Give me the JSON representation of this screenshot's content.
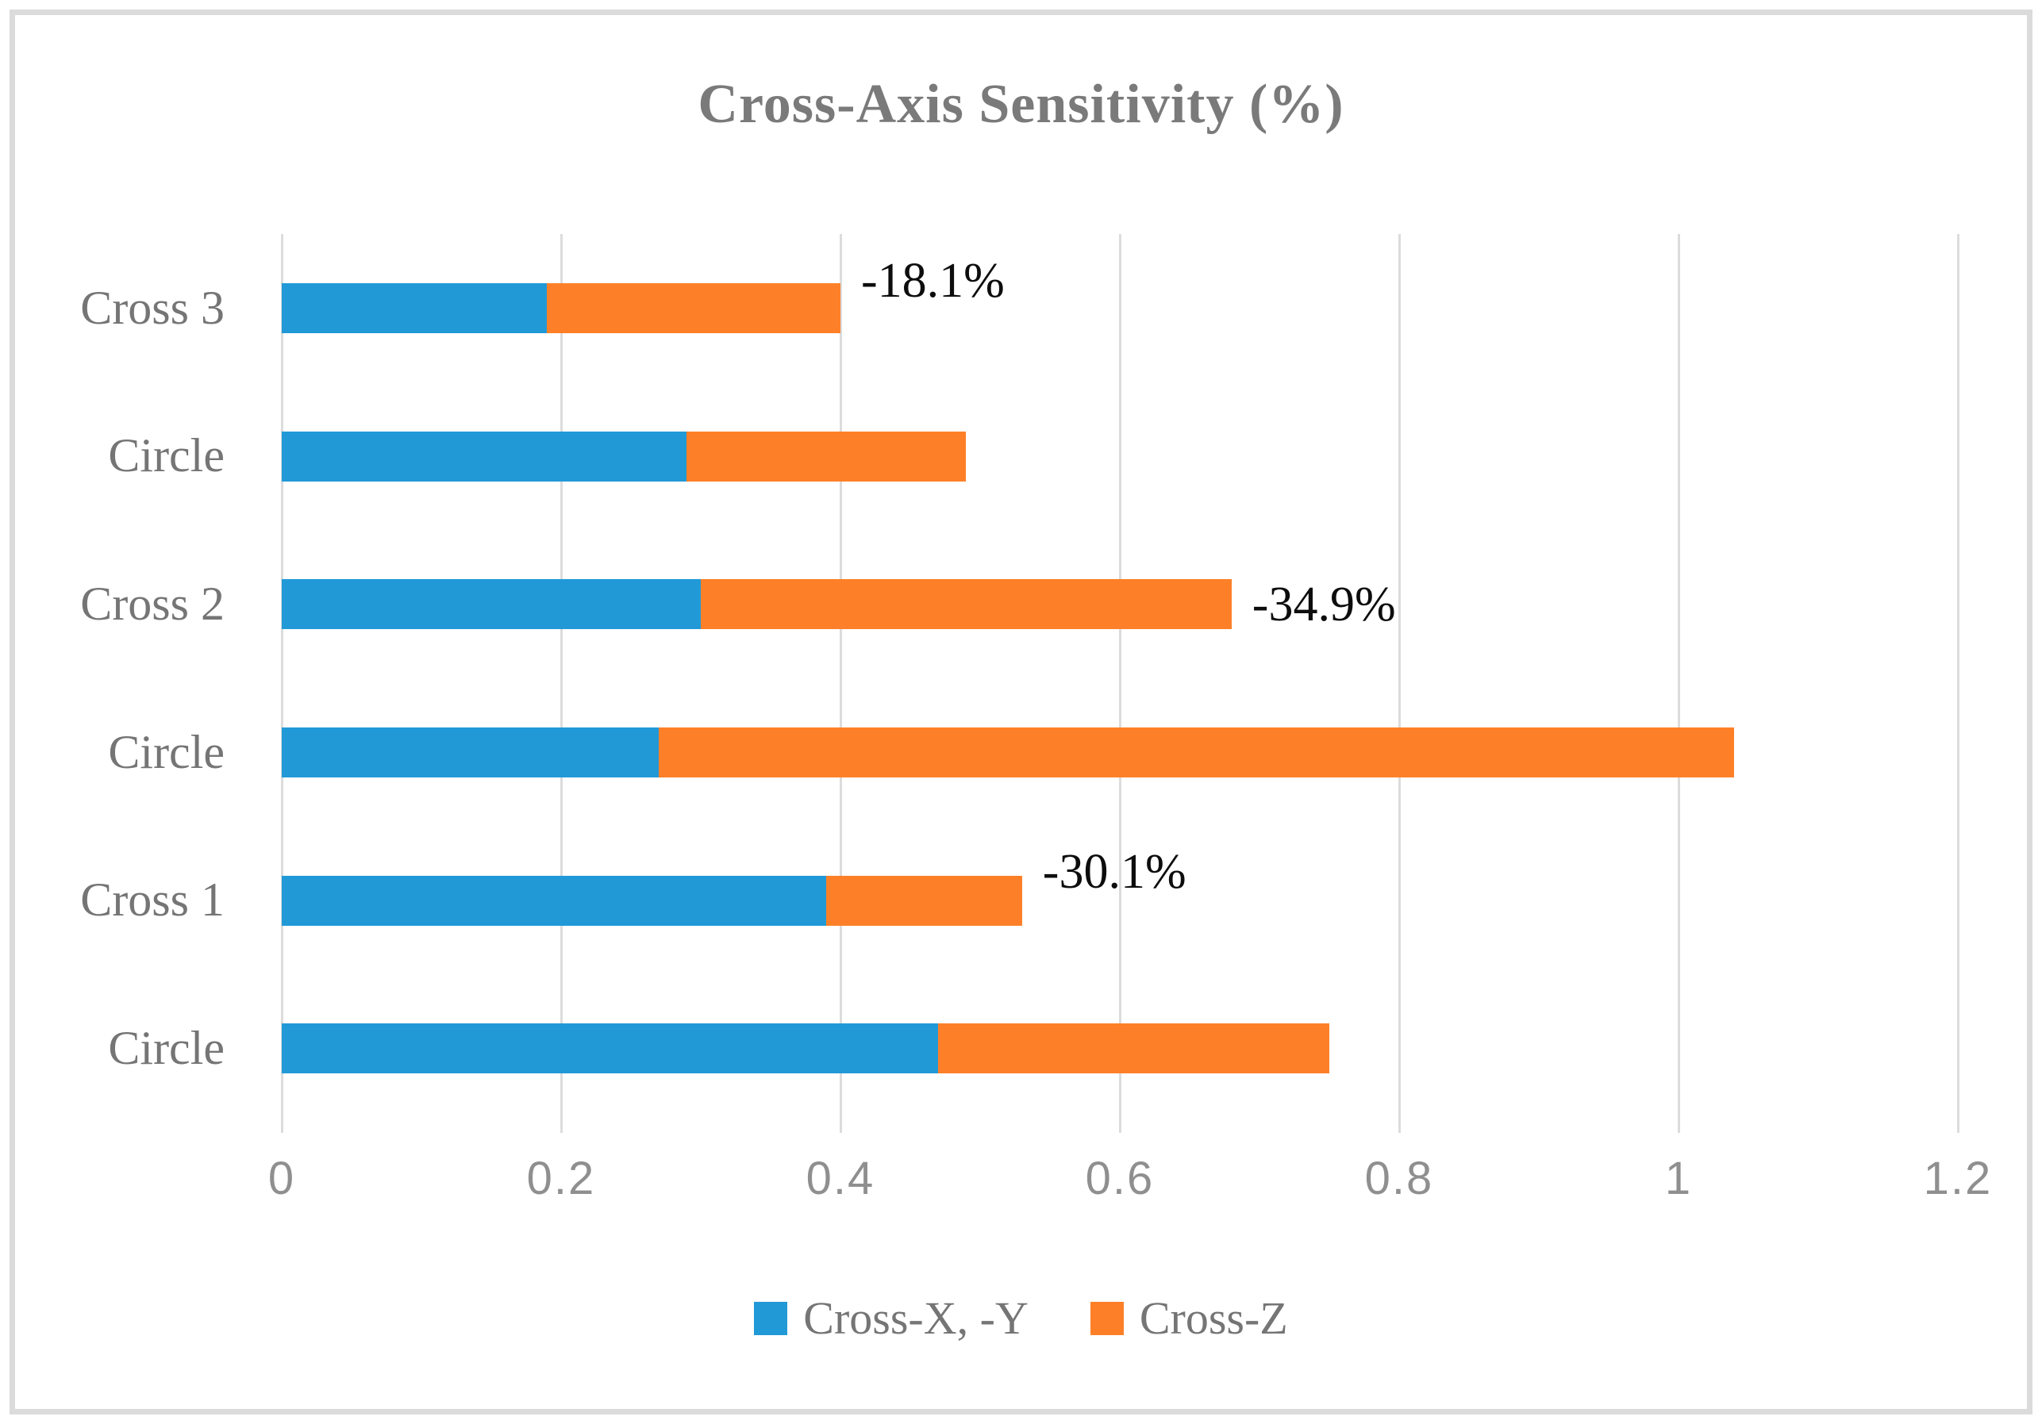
{
  "chart_data": {
    "type": "bar",
    "orientation": "horizontal",
    "stacked": true,
    "title": "Cross-Axis Sensitivity (%)",
    "categories": [
      "Cross 3",
      "Circle",
      "Cross 2",
      "Circle",
      "Cross 1",
      "Circle"
    ],
    "series": [
      {
        "name": "Cross-X, -Y",
        "color": "#2199d7",
        "values": [
          0.19,
          0.29,
          0.3,
          0.27,
          0.39,
          0.47
        ]
      },
      {
        "name": "Cross-Z",
        "color": "#fd8028",
        "values": [
          0.21,
          0.2,
          0.38,
          0.77,
          0.14,
          0.28
        ]
      }
    ],
    "annotations": [
      {
        "category_index": 0,
        "text": "-18.1%"
      },
      {
        "category_index": 2,
        "text": "-34.9%"
      },
      {
        "category_index": 4,
        "text": "-30.1%"
      }
    ],
    "x_ticks": [
      "0",
      "0.2",
      "0.4",
      "0.6",
      "0.8",
      "1",
      "1.2"
    ],
    "x_tick_values": [
      0,
      0.2,
      0.4,
      0.6,
      0.8,
      1.0,
      1.2
    ],
    "xlim": [
      0,
      1.2
    ],
    "grid": "vertical-on",
    "legend_position": "bottom"
  },
  "colors": {
    "title_text": "#7a7a7a",
    "category_text": "#757575",
    "tick_text": "#8f8f8f",
    "annotation_text": "#0d0d0d",
    "gridline": "#dcdcdc",
    "frame_border": "#dbdbdb",
    "background": "#ffffff",
    "series_blue": "#2199d7",
    "series_orange": "#fd8028"
  }
}
